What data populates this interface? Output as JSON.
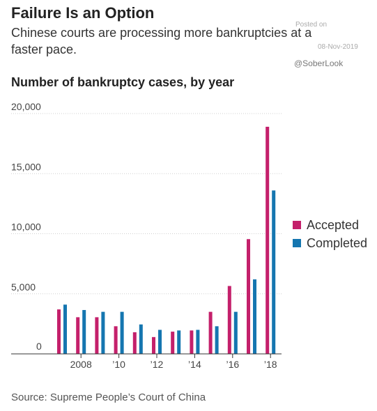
{
  "header": {
    "title": "Failure Is an Option",
    "subtitle": "Chinese courts are processing more bankruptcies at a faster pace."
  },
  "watermark": {
    "posted": "Posted on",
    "date": "08-Nov-2019",
    "handle": "@SoberLook"
  },
  "source": "Source: Supreme People’s Court of China",
  "colors": {
    "accepted": "#c4206b",
    "completed": "#1576b0"
  },
  "chart_data": {
    "type": "bar",
    "title": "Number of bankruptcy cases, by year",
    "xlabel": "",
    "ylabel": "",
    "ylim": [
      0,
      20000
    ],
    "y_ticks": [
      "20,000",
      "15,000",
      "10,000",
      "5,000",
      "0"
    ],
    "y_tick_values": [
      20000,
      15000,
      10000,
      5000,
      0
    ],
    "categories": [
      "2007",
      "2008",
      "2009",
      "2010",
      "2011",
      "2012",
      "2013",
      "2014",
      "2015",
      "2016",
      "2017",
      "2018"
    ],
    "x_tick_labels": [
      "",
      "2008",
      "",
      "’10",
      "",
      "’12",
      "",
      "’14",
      "",
      "’16",
      "",
      "’18"
    ],
    "grid": true,
    "legend_position": "right",
    "series": [
      {
        "name": "Accepted",
        "values": [
          3700,
          3050,
          3050,
          2300,
          1800,
          1400,
          1850,
          1950,
          3500,
          5650,
          9550,
          18900
        ]
      },
      {
        "name": "Completed",
        "values": [
          4100,
          3650,
          3500,
          3500,
          2450,
          2000,
          1950,
          2000,
          2300,
          3500,
          6200,
          13600
        ]
      }
    ]
  }
}
